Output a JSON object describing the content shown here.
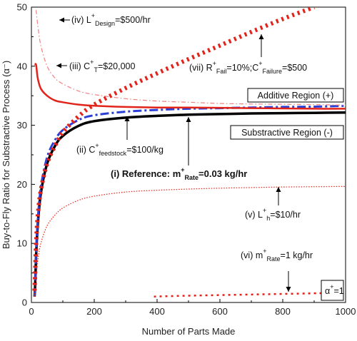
{
  "chart_data": {
    "type": "line",
    "xlabel": "Number of Parts Made",
    "ylabel": "Buy-to-Fly Ratio for Substractive Process (α⁻)",
    "xlim": [
      0,
      1000
    ],
    "ylim": [
      0,
      50
    ],
    "xticks": [
      0,
      200,
      400,
      600,
      800,
      1000
    ],
    "yticks": [
      0,
      10,
      20,
      30,
      40,
      50
    ],
    "grid": false,
    "series": [
      {
        "key": "i",
        "name": "(i) Reference: m+Rate=0.03 kg/hr",
        "color": "#000000",
        "style": "solid",
        "width": 3.5,
        "points": [
          [
            10,
            1
          ],
          [
            12,
            3
          ],
          [
            15,
            8
          ],
          [
            20,
            13
          ],
          [
            30,
            18.5
          ],
          [
            50,
            23.5
          ],
          [
            75,
            26.5
          ],
          [
            100,
            28.2
          ],
          [
            150,
            29.9
          ],
          [
            200,
            30.7
          ],
          [
            300,
            31.3
          ],
          [
            400,
            31.6
          ],
          [
            500,
            31.8
          ],
          [
            600,
            31.9
          ],
          [
            700,
            32.0
          ],
          [
            800,
            32.05
          ],
          [
            900,
            32.1
          ],
          [
            1000,
            32.15
          ]
        ]
      },
      {
        "key": "ii",
        "name": "(ii) C+feedstock=$100/kg",
        "color": "#2a3fd6",
        "style": "dashdot",
        "width": 3,
        "points": [
          [
            10,
            1
          ],
          [
            12,
            3.2
          ],
          [
            15,
            8.5
          ],
          [
            20,
            13.8
          ],
          [
            30,
            19.5
          ],
          [
            50,
            24.6
          ],
          [
            75,
            27.5
          ],
          [
            100,
            29.2
          ],
          [
            150,
            30.9
          ],
          [
            200,
            31.7
          ],
          [
            300,
            32.3
          ],
          [
            400,
            32.6
          ],
          [
            500,
            32.8
          ],
          [
            600,
            32.9
          ],
          [
            700,
            33.0
          ],
          [
            800,
            33.1
          ],
          [
            900,
            33.15
          ],
          [
            1000,
            33.3
          ]
        ]
      },
      {
        "key": "iii",
        "name": "(iii) C+T=$20,000",
        "color": "#e2231a",
        "style": "solid",
        "width": 2.5,
        "points": [
          [
            10,
            40.3
          ],
          [
            15,
            40.2
          ],
          [
            20,
            38
          ],
          [
            30,
            36.2
          ],
          [
            50,
            35
          ],
          [
            75,
            34.2
          ],
          [
            100,
            33.9
          ],
          [
            150,
            33.5
          ],
          [
            200,
            33.3
          ],
          [
            300,
            33.1
          ],
          [
            400,
            33.0
          ],
          [
            500,
            33.0
          ],
          [
            600,
            32.95
          ],
          [
            700,
            32.9
          ],
          [
            800,
            32.85
          ],
          [
            900,
            32.8
          ],
          [
            1000,
            32.8
          ]
        ]
      },
      {
        "key": "iv",
        "name": "(iv) L+Design=$500/hr",
        "color": "#f08080",
        "style": "dashdot-thin",
        "width": 1.2,
        "points": [
          [
            15,
            49.5
          ],
          [
            20,
            47
          ],
          [
            30,
            43.5
          ],
          [
            50,
            40
          ],
          [
            75,
            38
          ],
          [
            100,
            37
          ],
          [
            150,
            35.8
          ],
          [
            200,
            35.2
          ],
          [
            300,
            34.5
          ],
          [
            400,
            34.1
          ],
          [
            500,
            33.9
          ],
          [
            600,
            33.7
          ],
          [
            700,
            33.6
          ],
          [
            800,
            33.55
          ],
          [
            900,
            33.5
          ],
          [
            1000,
            33.4
          ]
        ]
      },
      {
        "key": "v",
        "name": "(v) L+h=$10/hr",
        "color": "#e2231a",
        "style": "dotted-thin",
        "width": 1.2,
        "points": [
          [
            10,
            1
          ],
          [
            15,
            4
          ],
          [
            20,
            7
          ],
          [
            30,
            10
          ],
          [
            50,
            13
          ],
          [
            75,
            14.8
          ],
          [
            100,
            16
          ],
          [
            150,
            17.3
          ],
          [
            200,
            18
          ],
          [
            300,
            18.7
          ],
          [
            400,
            19
          ],
          [
            500,
            19.2
          ],
          [
            600,
            19.35
          ],
          [
            700,
            19.45
          ],
          [
            800,
            19.55
          ],
          [
            900,
            19.6
          ],
          [
            1000,
            19.65
          ]
        ]
      },
      {
        "key": "vi",
        "name": "(vi) m+Rate=1 kg/hr",
        "color": "#e2231a",
        "style": "dotted-heavy",
        "width": 2.5,
        "points": [
          [
            390,
            1.0
          ],
          [
            500,
            1.15
          ],
          [
            600,
            1.25
          ],
          [
            700,
            1.35
          ],
          [
            800,
            1.45
          ],
          [
            900,
            1.55
          ],
          [
            950,
            1.6
          ]
        ]
      },
      {
        "key": "vii",
        "name": "(vii) R+Fail=10%;C+Failure=$500",
        "color": "#e2231a",
        "style": "dotted-heavy",
        "width": 6,
        "points": [
          [
            10,
            2
          ],
          [
            12,
            5
          ],
          [
            15,
            10
          ],
          [
            20,
            14.5
          ],
          [
            30,
            19
          ],
          [
            50,
            23.5
          ],
          [
            75,
            26.5
          ],
          [
            100,
            28.8
          ],
          [
            150,
            31.5
          ],
          [
            200,
            33.5
          ],
          [
            300,
            36.3
          ],
          [
            400,
            38.8
          ],
          [
            500,
            41.2
          ],
          [
            600,
            43.5
          ],
          [
            700,
            45.8
          ],
          [
            800,
            48
          ],
          [
            900,
            50
          ]
        ]
      }
    ],
    "annotations": {
      "iv_label": {
        "pre": "(iv) L",
        "sup": "+",
        "sub": "Design",
        "post": "=$500/hr"
      },
      "iii_label": {
        "pre": "(iii) C",
        "sup": "+",
        "sub": "T",
        "post": "=$20,000"
      },
      "vii_label": {
        "pre": "(vii) R",
        "sup": "+",
        "sub": "Fail",
        "mid": "=10%;C",
        "sup2": "+",
        "sub2": "Failure",
        "post": "=$500"
      },
      "ii_label": {
        "pre": "(ii) C",
        "sup": "+",
        "sub": "feedstock",
        "post": "=$100/kg"
      },
      "i_label": {
        "pre": "(i) Reference: m",
        "sup": "+",
        "sub": "Rate",
        "post": "=0.03 kg/hr"
      },
      "v_label": {
        "pre": "(v) L",
        "sup": "+",
        "sub": "h",
        "post": "=$10/hr"
      },
      "vi_label": {
        "pre": "(vi) m",
        "sup": "+",
        "sub": "Rate",
        "post": "=1 kg/hr"
      },
      "additive_region": "Additive Region (+)",
      "subtractive_region": "Substractive Region (-)",
      "alpha_box": {
        "pre": "α",
        "sup": "+",
        "post": "=1"
      }
    }
  }
}
